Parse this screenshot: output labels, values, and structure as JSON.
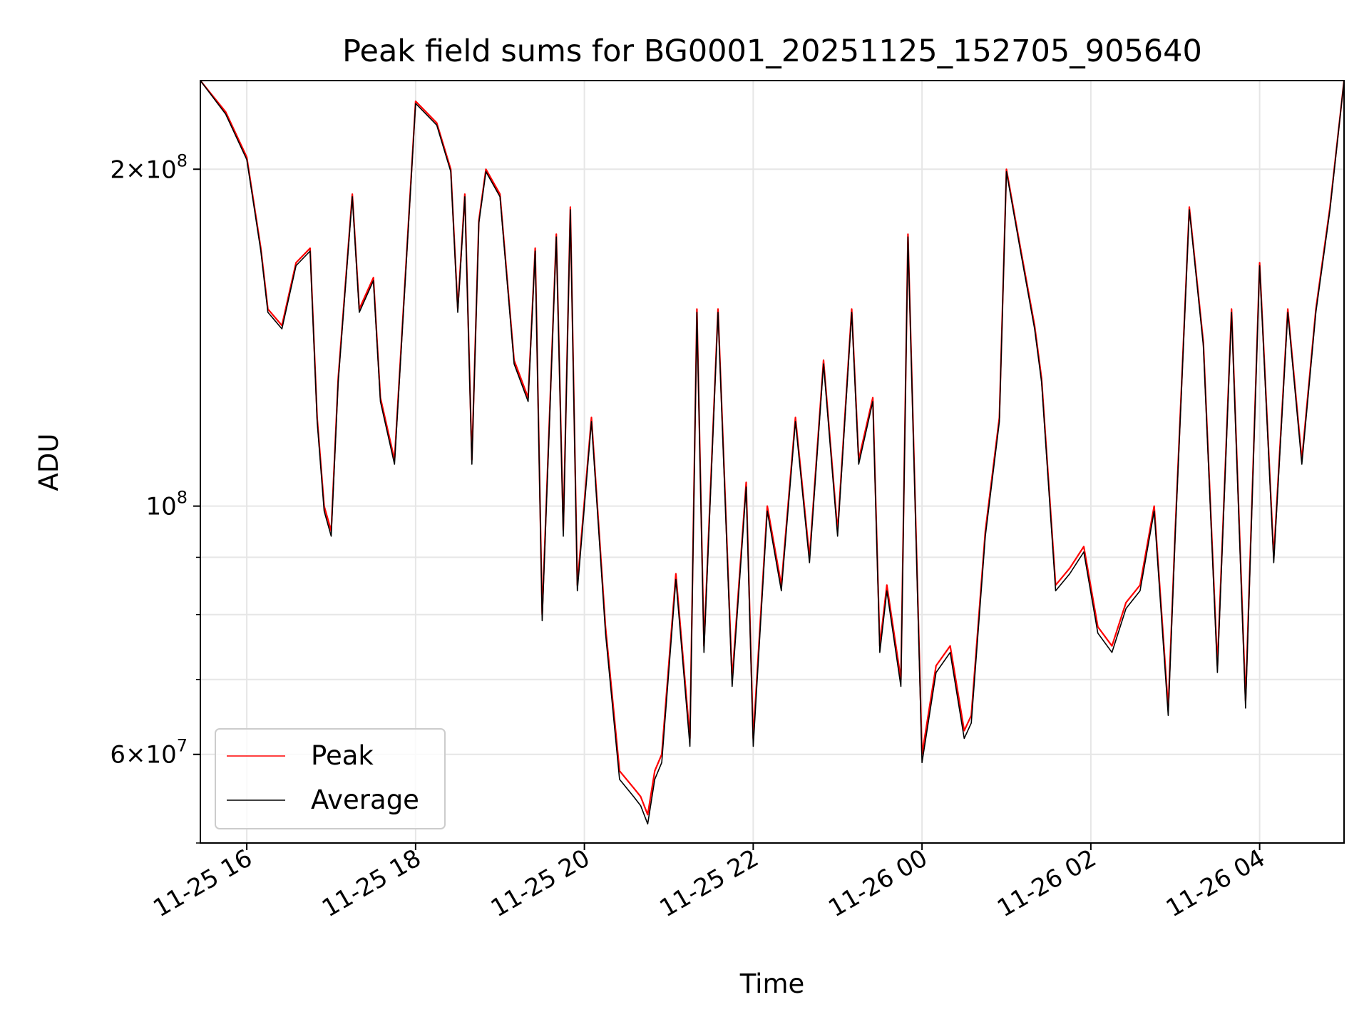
{
  "chart_data": {
    "type": "line",
    "title": "Peak field sums for BG0001_20251125_152705_905640",
    "xlabel": "Time",
    "ylabel": "ADU",
    "y_scale": "log",
    "xlim": [
      "2025-11-25 15:27",
      "2025-11-26 05:00"
    ],
    "ylim": [
      50000000,
      240000000
    ],
    "x_ticks": [
      "11-25 16",
      "11-25 18",
      "11-25 20",
      "11-25 22",
      "11-26 00",
      "11-26 02",
      "11-26 04"
    ],
    "y_major_ticks": [
      {
        "value": 60000000,
        "mantissa": "6",
        "exponent": "7"
      },
      {
        "value": 100000000,
        "mantissa": "",
        "exponent": "8"
      },
      {
        "value": 200000000,
        "mantissa": "2",
        "exponent": "8"
      }
    ],
    "grid": true,
    "legend_position": "lower-left",
    "series": [
      {
        "name": "Peak",
        "color": "#ff0000",
        "x": [
          "2025-11-25 15:27",
          "2025-11-25 15:45",
          "2025-11-25 16:00",
          "2025-11-25 16:10",
          "2025-11-25 16:15",
          "2025-11-25 16:25",
          "2025-11-25 16:35",
          "2025-11-25 16:45",
          "2025-11-25 16:50",
          "2025-11-25 16:55",
          "2025-11-25 17:00",
          "2025-11-25 17:05",
          "2025-11-25 17:15",
          "2025-11-25 17:20",
          "2025-11-25 17:30",
          "2025-11-25 17:35",
          "2025-11-25 17:45",
          "2025-11-25 18:00",
          "2025-11-25 18:15",
          "2025-11-25 18:25",
          "2025-11-25 18:30",
          "2025-11-25 18:35",
          "2025-11-25 18:40",
          "2025-11-25 18:45",
          "2025-11-25 18:50",
          "2025-11-25 19:00",
          "2025-11-25 19:10",
          "2025-11-25 19:20",
          "2025-11-25 19:25",
          "2025-11-25 19:30",
          "2025-11-25 19:40",
          "2025-11-25 19:45",
          "2025-11-25 19:50",
          "2025-11-25 19:55",
          "2025-11-25 20:05",
          "2025-11-25 20:15",
          "2025-11-25 20:25",
          "2025-11-25 20:35",
          "2025-11-25 20:40",
          "2025-11-25 20:45",
          "2025-11-25 20:50",
          "2025-11-25 20:55",
          "2025-11-25 21:05",
          "2025-11-25 21:15",
          "2025-11-25 21:20",
          "2025-11-25 21:25",
          "2025-11-25 21:35",
          "2025-11-25 21:45",
          "2025-11-25 21:55",
          "2025-11-25 22:00",
          "2025-11-25 22:10",
          "2025-11-25 22:20",
          "2025-11-25 22:30",
          "2025-11-25 22:40",
          "2025-11-25 22:50",
          "2025-11-25 23:00",
          "2025-11-25 23:10",
          "2025-11-25 23:15",
          "2025-11-25 23:25",
          "2025-11-25 23:30",
          "2025-11-25 23:35",
          "2025-11-25 23:45",
          "2025-11-25 23:50",
          "2025-11-26 00:00",
          "2025-11-26 00:10",
          "2025-11-26 00:20",
          "2025-11-26 00:30",
          "2025-11-26 00:35",
          "2025-11-26 00:45",
          "2025-11-26 00:55",
          "2025-11-26 01:00",
          "2025-11-26 01:10",
          "2025-11-26 01:20",
          "2025-11-26 01:25",
          "2025-11-26 01:35",
          "2025-11-26 01:45",
          "2025-11-26 01:55",
          "2025-11-26 02:05",
          "2025-11-26 02:15",
          "2025-11-26 02:25",
          "2025-11-26 02:35",
          "2025-11-26 02:45",
          "2025-11-26 02:55",
          "2025-11-26 03:00",
          "2025-11-26 03:10",
          "2025-11-26 03:20",
          "2025-11-26 03:30",
          "2025-11-26 03:40",
          "2025-11-26 03:50",
          "2025-11-26 04:00",
          "2025-11-26 04:10",
          "2025-11-26 04:20",
          "2025-11-26 04:30",
          "2025-11-26 04:40",
          "2025-11-26 04:50",
          "2025-11-26 05:00"
        ],
        "y": [
          240000000,
          225000000,
          205000000,
          170000000,
          150000000,
          145000000,
          165000000,
          170000000,
          120000000,
          100000000,
          95000000,
          130000000,
          190000000,
          150000000,
          160000000,
          125000000,
          110000000,
          230000000,
          220000000,
          200000000,
          150000000,
          190000000,
          110000000,
          180000000,
          200000000,
          190000000,
          135000000,
          125000000,
          170000000,
          80000000,
          175000000,
          95000000,
          185000000,
          85000000,
          120000000,
          78000000,
          58000000,
          56000000,
          55000000,
          53000000,
          58000000,
          60000000,
          87000000,
          62000000,
          150000000,
          75000000,
          150000000,
          70000000,
          105000000,
          62000000,
          100000000,
          85000000,
          120000000,
          90000000,
          135000000,
          95000000,
          150000000,
          110000000,
          125000000,
          75000000,
          85000000,
          70000000,
          175000000,
          60000000,
          72000000,
          75000000,
          63000000,
          65000000,
          95000000,
          120000000,
          200000000,
          170000000,
          145000000,
          130000000,
          85000000,
          88000000,
          92000000,
          78000000,
          75000000,
          82000000,
          85000000,
          100000000,
          66000000,
          95000000,
          185000000,
          140000000,
          72000000,
          150000000,
          67000000,
          165000000,
          90000000,
          150000000,
          110000000,
          150000000,
          185000000,
          240000000
        ]
      },
      {
        "name": "Average",
        "color": "#000000",
        "x": [
          "2025-11-25 15:27",
          "2025-11-25 15:45",
          "2025-11-25 16:00",
          "2025-11-25 16:10",
          "2025-11-25 16:15",
          "2025-11-25 16:25",
          "2025-11-25 16:35",
          "2025-11-25 16:45",
          "2025-11-25 16:50",
          "2025-11-25 16:55",
          "2025-11-25 17:00",
          "2025-11-25 17:05",
          "2025-11-25 17:15",
          "2025-11-25 17:20",
          "2025-11-25 17:30",
          "2025-11-25 17:35",
          "2025-11-25 17:45",
          "2025-11-25 18:00",
          "2025-11-25 18:15",
          "2025-11-25 18:25",
          "2025-11-25 18:30",
          "2025-11-25 18:35",
          "2025-11-25 18:40",
          "2025-11-25 18:45",
          "2025-11-25 18:50",
          "2025-11-25 19:00",
          "2025-11-25 19:10",
          "2025-11-25 19:20",
          "2025-11-25 19:25",
          "2025-11-25 19:30",
          "2025-11-25 19:40",
          "2025-11-25 19:45",
          "2025-11-25 19:50",
          "2025-11-25 19:55",
          "2025-11-25 20:05",
          "2025-11-25 20:15",
          "2025-11-25 20:25",
          "2025-11-25 20:35",
          "2025-11-25 20:40",
          "2025-11-25 20:45",
          "2025-11-25 20:50",
          "2025-11-25 20:55",
          "2025-11-25 21:05",
          "2025-11-25 21:15",
          "2025-11-25 21:20",
          "2025-11-25 21:25",
          "2025-11-25 21:35",
          "2025-11-25 21:45",
          "2025-11-25 21:55",
          "2025-11-25 22:00",
          "2025-11-25 22:10",
          "2025-11-25 22:20",
          "2025-11-25 22:30",
          "2025-11-25 22:40",
          "2025-11-25 22:50",
          "2025-11-25 23:00",
          "2025-11-25 23:10",
          "2025-11-25 23:15",
          "2025-11-25 23:25",
          "2025-11-25 23:30",
          "2025-11-25 23:35",
          "2025-11-25 23:45",
          "2025-11-25 23:50",
          "2025-11-26 00:00",
          "2025-11-26 00:10",
          "2025-11-26 00:20",
          "2025-11-26 00:30",
          "2025-11-26 00:35",
          "2025-11-26 00:45",
          "2025-11-26 00:55",
          "2025-11-26 01:00",
          "2025-11-26 01:10",
          "2025-11-26 01:20",
          "2025-11-26 01:25",
          "2025-11-26 01:35",
          "2025-11-26 01:45",
          "2025-11-26 01:55",
          "2025-11-26 02:05",
          "2025-11-26 02:15",
          "2025-11-26 02:25",
          "2025-11-26 02:35",
          "2025-11-26 02:45",
          "2025-11-26 02:55",
          "2025-11-26 03:00",
          "2025-11-26 03:10",
          "2025-11-26 03:20",
          "2025-11-26 03:30",
          "2025-11-26 03:40",
          "2025-11-26 03:50",
          "2025-11-26 04:00",
          "2025-11-26 04:10",
          "2025-11-26 04:20",
          "2025-11-26 04:30",
          "2025-11-26 04:40",
          "2025-11-26 04:50",
          "2025-11-26 05:00"
        ],
        "y": [
          240000000,
          224000000,
          204000000,
          169000000,
          149000000,
          144000000,
          164000000,
          169000000,
          119000000,
          99000000,
          94000000,
          129000000,
          189000000,
          149000000,
          159000000,
          124000000,
          109000000,
          229000000,
          219000000,
          199000000,
          149000000,
          189000000,
          109000000,
          179000000,
          199000000,
          189000000,
          134000000,
          124000000,
          169000000,
          79000000,
          174000000,
          94000000,
          184000000,
          84000000,
          119000000,
          77000000,
          57000000,
          55000000,
          54000000,
          52000000,
          57000000,
          59000000,
          86000000,
          61000000,
          149000000,
          74000000,
          149000000,
          69000000,
          104000000,
          61000000,
          99000000,
          84000000,
          119000000,
          89000000,
          134000000,
          94000000,
          149000000,
          109000000,
          124000000,
          74000000,
          84000000,
          69000000,
          174000000,
          59000000,
          71000000,
          74000000,
          62000000,
          64000000,
          94000000,
          119000000,
          199000000,
          169000000,
          144000000,
          129000000,
          84000000,
          87000000,
          91000000,
          77000000,
          74000000,
          81000000,
          84000000,
          99000000,
          65000000,
          94000000,
          184000000,
          139000000,
          71000000,
          149000000,
          66000000,
          164000000,
          89000000,
          149000000,
          109000000,
          149000000,
          184000000,
          240000000
        ]
      }
    ]
  }
}
